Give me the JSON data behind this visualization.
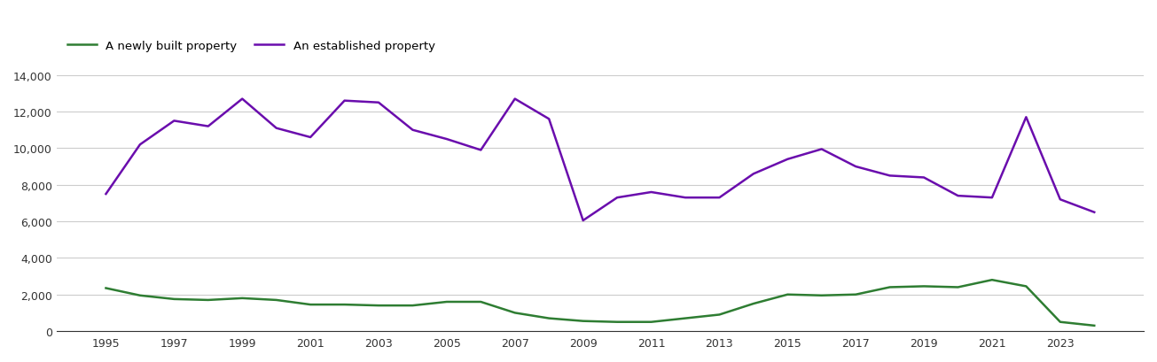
{
  "years": [
    1995,
    1996,
    1997,
    1998,
    1999,
    2000,
    2001,
    2002,
    2003,
    2004,
    2005,
    2006,
    2007,
    2008,
    2009,
    2010,
    2011,
    2012,
    2013,
    2014,
    2015,
    2016,
    2017,
    2018,
    2019,
    2020,
    2021,
    2022,
    2023,
    2024
  ],
  "new_build": [
    2350,
    1950,
    1750,
    1700,
    1800,
    1700,
    1450,
    1450,
    1400,
    1400,
    1600,
    1600,
    1000,
    700,
    550,
    500,
    500,
    700,
    900,
    1500,
    2000,
    1950,
    2000,
    2400,
    2450,
    2400,
    2800,
    2450,
    500,
    300
  ],
  "established": [
    7500,
    10200,
    11500,
    11200,
    12700,
    11100,
    10600,
    12600,
    12500,
    11000,
    10500,
    9900,
    12700,
    11600,
    6050,
    7300,
    7600,
    7300,
    7300,
    8600,
    9400,
    9950,
    9000,
    8500,
    8400,
    7400,
    7300,
    11700,
    7200,
    6500
  ],
  "new_build_color": "#2e7d32",
  "established_color": "#6a0dad",
  "new_build_label": "A newly built property",
  "established_label": "An established property",
  "ylim": [
    0,
    14000
  ],
  "yticks": [
    0,
    2000,
    4000,
    6000,
    8000,
    10000,
    12000,
    14000
  ],
  "xticks": [
    1995,
    1997,
    1999,
    2001,
    2003,
    2005,
    2007,
    2009,
    2011,
    2013,
    2015,
    2017,
    2019,
    2021,
    2023
  ],
  "bg_color": "#ffffff",
  "grid_color": "#cccccc",
  "line_width": 1.8
}
